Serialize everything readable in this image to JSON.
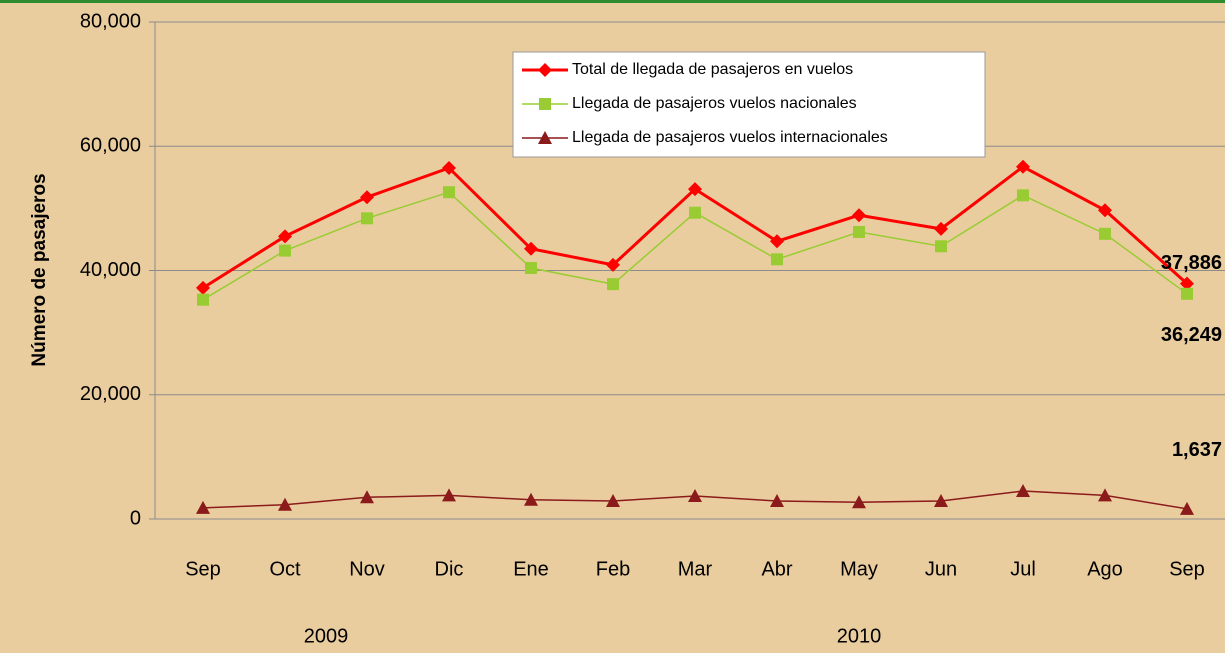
{
  "chart_data": {
    "type": "line",
    "y_label": "Número de pasajeros",
    "categories": [
      "Sep",
      "Oct",
      "Nov",
      "Dic",
      "Ene",
      "Feb",
      "Mar",
      "Abr",
      "May",
      "Jun",
      "Jul",
      "Ago",
      "Sep"
    ],
    "x_groups": [
      "2009",
      "2010"
    ],
    "series": [
      {
        "name": "Total de llegada de pasajeros en vuelos",
        "color": "#ff0000",
        "marker": "diamond",
        "values": [
          37200,
          45500,
          51800,
          56500,
          43500,
          40900,
          53100,
          44700,
          48900,
          46700,
          56700,
          49700,
          37886
        ],
        "value_labels": [
          null,
          null,
          null,
          null,
          null,
          null,
          null,
          null,
          null,
          null,
          null,
          null,
          "37,886"
        ]
      },
      {
        "name": "Llegada de pasajeros vuelos nacionales",
        "color": "#99cc33",
        "marker": "square",
        "values": [
          35300,
          43200,
          48400,
          52600,
          40400,
          37800,
          49300,
          41800,
          46200,
          43900,
          52100,
          45900,
          36249
        ],
        "value_labels": [
          null,
          null,
          null,
          null,
          null,
          null,
          null,
          null,
          null,
          null,
          null,
          null,
          "36,249"
        ]
      },
      {
        "name": "Llegada de pasajeros vuelos internacionales",
        "color": "#8b1a1a",
        "marker": "triangle",
        "values": [
          1800,
          2300,
          3500,
          3800,
          3100,
          2900,
          3700,
          2900,
          2700,
          2900,
          4500,
          3800,
          1637
        ],
        "value_labels": [
          null,
          null,
          null,
          null,
          null,
          null,
          null,
          null,
          null,
          null,
          null,
          null,
          "1,637"
        ]
      }
    ],
    "ylim": [
      0,
      80000
    ],
    "yticks": [
      0,
      {
        "value": 20000,
        "label": "20,000"
      },
      {
        "value": 40000,
        "label": "40,000"
      },
      {
        "value": 60000,
        "label": "60,000"
      },
      {
        "value": 80000,
        "label": "80,000"
      }
    ],
    "grid": true
  }
}
